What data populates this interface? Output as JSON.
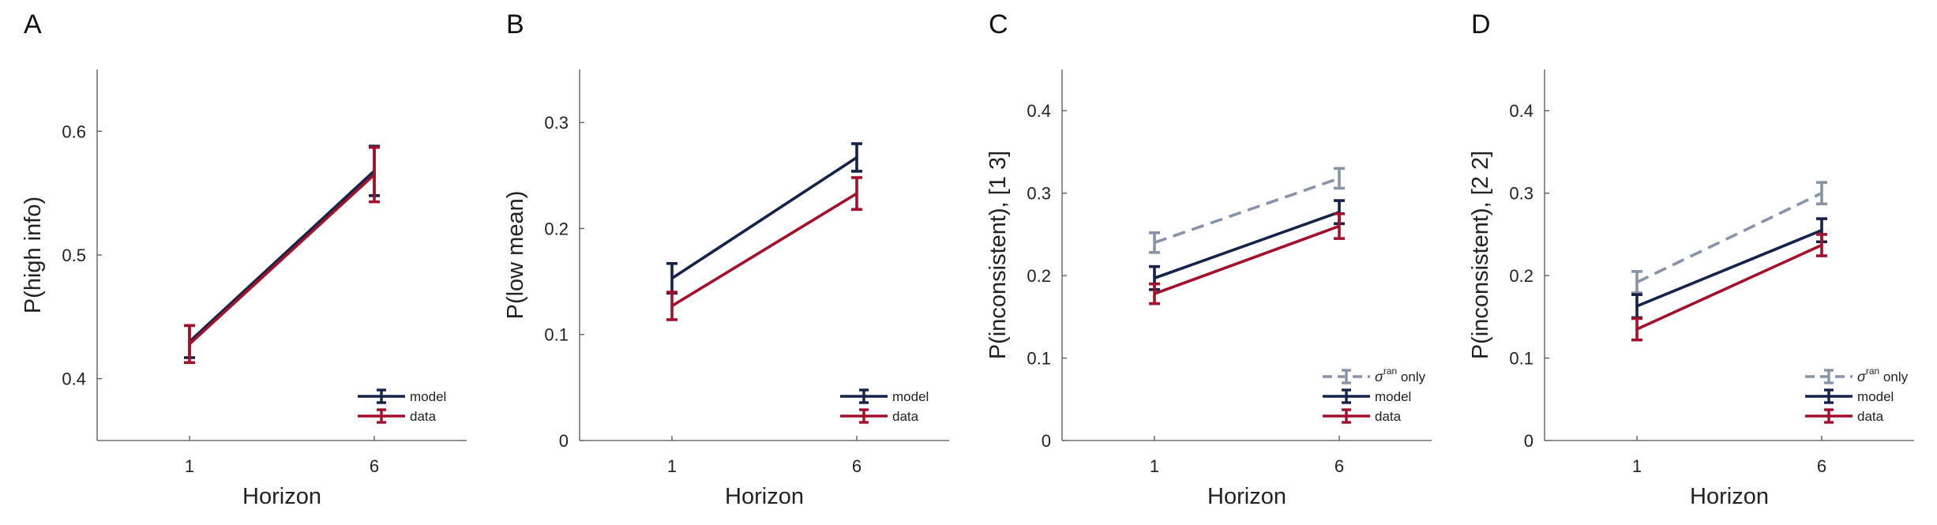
{
  "chart_data": [
    {
      "panel": "A",
      "type": "line",
      "categories": [
        "1",
        "6"
      ],
      "xlabel": "Horizon",
      "ylabel": "P(high info)",
      "ylim": [
        0.35,
        0.65
      ],
      "yticks": [
        0.4,
        0.5,
        0.6
      ],
      "ytick_labels": [
        "0.4",
        "0.5",
        "0.6"
      ],
      "legend_position": "bottom-right",
      "series": [
        {
          "name": "model",
          "color": "#14234a",
          "dashed": false,
          "values": [
            0.43,
            0.568
          ],
          "errors": [
            0.013,
            0.02
          ]
        },
        {
          "name": "data",
          "color": "#a4102a",
          "dashed": false,
          "values": [
            0.428,
            0.565
          ],
          "errors": [
            0.015,
            0.022
          ]
        }
      ]
    },
    {
      "panel": "B",
      "type": "line",
      "categories": [
        "1",
        "6"
      ],
      "xlabel": "Horizon",
      "ylabel": "P(low mean)",
      "ylim": [
        0,
        0.35
      ],
      "yticks": [
        0,
        0.1,
        0.2,
        0.3
      ],
      "ytick_labels": [
        "0",
        "0.1",
        "0.2",
        "0.3"
      ],
      "legend_position": "bottom-right",
      "series": [
        {
          "name": "model",
          "color": "#14234a",
          "dashed": false,
          "values": [
            0.153,
            0.267
          ],
          "errors": [
            0.014,
            0.013
          ]
        },
        {
          "name": "data",
          "color": "#a4102a",
          "dashed": false,
          "values": [
            0.127,
            0.233
          ],
          "errors": [
            0.013,
            0.015
          ]
        }
      ]
    },
    {
      "panel": "C",
      "type": "line",
      "categories": [
        "1",
        "6"
      ],
      "xlabel": "Horizon",
      "ylabel": "P(inconsistent), [1 3]",
      "ylim": [
        0,
        0.45
      ],
      "yticks": [
        0,
        0.1,
        0.2,
        0.3,
        0.4
      ],
      "ytick_labels": [
        "0",
        "0.1",
        "0.2",
        "0.3",
        "0.4"
      ],
      "legend_position": "bottom-right",
      "series": [
        {
          "name_symbol": "σ",
          "name_sup": "ran",
          "name_tail": " only",
          "color": "#8893a8",
          "dashed": true,
          "values": [
            0.24,
            0.318
          ],
          "errors": [
            0.012,
            0.012
          ]
        },
        {
          "name": "model",
          "color": "#14234a",
          "dashed": false,
          "values": [
            0.197,
            0.277
          ],
          "errors": [
            0.014,
            0.014
          ]
        },
        {
          "name": "data",
          "color": "#a4102a",
          "dashed": false,
          "values": [
            0.178,
            0.26
          ],
          "errors": [
            0.012,
            0.015
          ]
        }
      ]
    },
    {
      "panel": "D",
      "type": "line",
      "categories": [
        "1",
        "6"
      ],
      "xlabel": "Horizon",
      "ylabel": "P(inconsistent), [2 2]",
      "ylim": [
        0,
        0.45
      ],
      "yticks": [
        0,
        0.1,
        0.2,
        0.3,
        0.4
      ],
      "ytick_labels": [
        "0",
        "0.1",
        "0.2",
        "0.3",
        "0.4"
      ],
      "legend_position": "bottom-right",
      "series": [
        {
          "name_symbol": "σ",
          "name_sup": "ran",
          "name_tail": " only",
          "color": "#8893a8",
          "dashed": true,
          "values": [
            0.192,
            0.3
          ],
          "errors": [
            0.013,
            0.013
          ]
        },
        {
          "name": "model",
          "color": "#14234a",
          "dashed": false,
          "values": [
            0.163,
            0.255
          ],
          "errors": [
            0.014,
            0.014
          ]
        },
        {
          "name": "data",
          "color": "#a4102a",
          "dashed": false,
          "values": [
            0.135,
            0.237
          ],
          "errors": [
            0.013,
            0.013
          ]
        }
      ]
    }
  ]
}
